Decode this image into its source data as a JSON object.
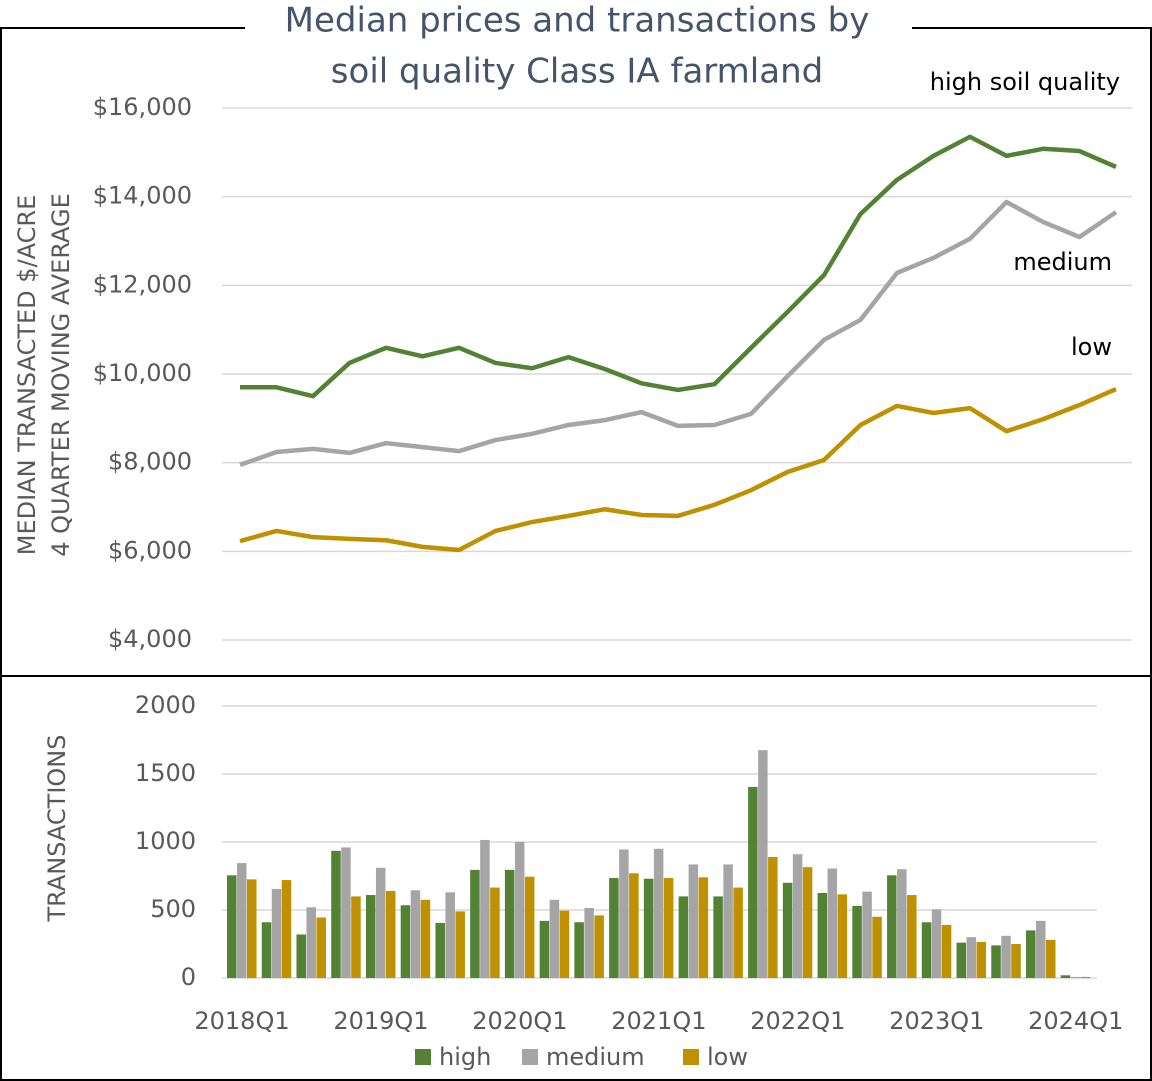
{
  "chart_data": [
    {
      "type": "line",
      "title": [
        "Median prices and transactions by",
        "soil quality Class IA farmland"
      ],
      "y_label": [
        "MEDIAN TRANSACTED $/ACRE",
        "4 QUARTER MOVING AVERAGE"
      ],
      "annotations": [
        "high soil quality",
        "medium",
        "low"
      ],
      "categories": [
        null,
        null,
        null,
        null,
        null,
        null,
        null,
        null,
        null,
        null,
        null,
        null,
        null,
        null,
        null,
        null,
        null,
        null,
        null,
        null,
        null,
        null,
        null,
        null,
        null
      ],
      "ylim": [
        4000,
        16000
      ],
      "yticks": [
        {
          "value": 4000,
          "label": "$4,000"
        },
        {
          "value": 6000,
          "label": "$6,000"
        },
        {
          "value": 8000,
          "label": "$8,000"
        },
        {
          "value": 10000,
          "label": "$10,000"
        },
        {
          "value": 12000,
          "label": "$12,000"
        },
        {
          "value": 14000,
          "label": "$14,000"
        },
        {
          "value": 16000,
          "label": "$16,000"
        }
      ],
      "grid": true,
      "series": [
        {
          "name": "high",
          "color": "#548235",
          "values": [
            9700,
            9700,
            9500,
            10250,
            10590,
            10400,
            10590,
            10250,
            10130,
            10380,
            10110,
            9790,
            9640,
            9770,
            10590,
            11400,
            12230,
            13610,
            14380,
            14920,
            15350,
            14920,
            15080,
            15030,
            14670
          ]
        },
        {
          "name": "medium",
          "color": "#a5a5a5",
          "values": [
            7950,
            8240,
            8310,
            8220,
            8440,
            8350,
            8260,
            8510,
            8650,
            8850,
            8960,
            9140,
            8830,
            8850,
            9100,
            9950,
            10770,
            11220,
            12280,
            12620,
            13050,
            13880,
            13430,
            13090,
            13650
          ]
        },
        {
          "name": "low",
          "color": "#bf9000",
          "values": [
            6230,
            6460,
            6320,
            6280,
            6250,
            6100,
            6030,
            6460,
            6660,
            6800,
            6950,
            6820,
            6800,
            7050,
            7380,
            7790,
            8060,
            8850,
            9280,
            9120,
            9230,
            8710,
            8980,
            9300,
            9660
          ]
        }
      ]
    },
    {
      "type": "bar",
      "y_label": "TRANSACTIONS",
      "categories": [
        "2018Q1",
        null,
        null,
        null,
        "2019Q1",
        null,
        null,
        null,
        "2020Q1",
        null,
        null,
        null,
        "2021Q1",
        null,
        null,
        null,
        "2022Q1",
        null,
        null,
        null,
        "2023Q1",
        null,
        null,
        null,
        "2024Q1"
      ],
      "ylim": [
        0,
        2000
      ],
      "yticks": [
        0,
        500,
        1000,
        1500,
        2000
      ],
      "grid": true,
      "legend": "bottom",
      "series": [
        {
          "name": "high",
          "color": "#548235",
          "values": [
            755,
            410,
            320,
            935,
            610,
            535,
            405,
            795,
            795,
            420,
            410,
            735,
            730,
            600,
            600,
            1405,
            700,
            625,
            530,
            755,
            410,
            260,
            240,
            350,
            20
          ]
        },
        {
          "name": "medium",
          "color": "#a5a5a5",
          "values": [
            845,
            655,
            520,
            960,
            810,
            645,
            630,
            1015,
            1000,
            575,
            515,
            945,
            950,
            835,
            835,
            1675,
            910,
            805,
            635,
            800,
            505,
            300,
            310,
            420,
            8
          ]
        },
        {
          "name": "low",
          "color": "#bf9000",
          "values": [
            725,
            720,
            445,
            600,
            640,
            575,
            490,
            665,
            745,
            495,
            460,
            770,
            735,
            740,
            665,
            890,
            815,
            615,
            450,
            610,
            390,
            265,
            250,
            280,
            8
          ]
        }
      ]
    }
  ]
}
